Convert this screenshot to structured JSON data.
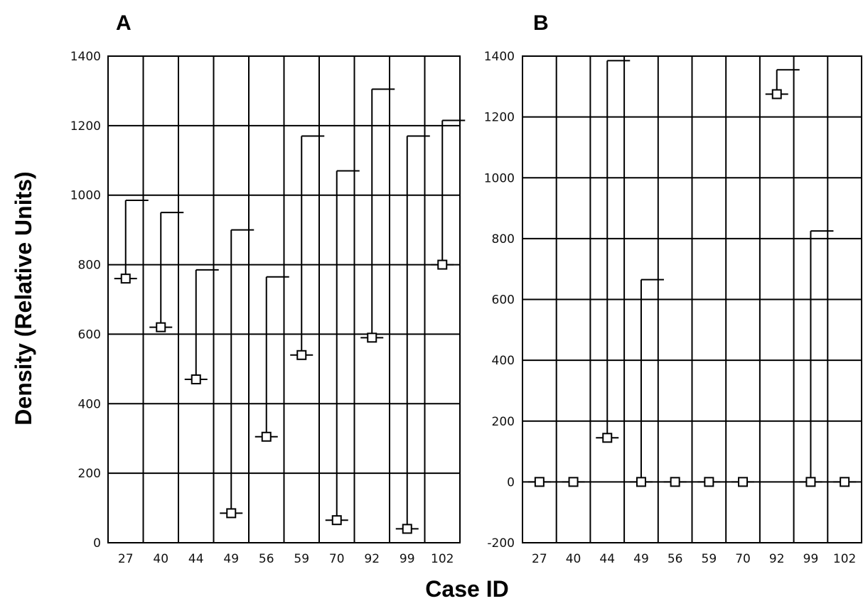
{
  "figure": {
    "ylabel": "Density (Relative Units)",
    "xlabel": "Case ID"
  },
  "chart_data": [
    {
      "type": "scatter",
      "panel_label": "A",
      "categories": [
        "27",
        "40",
        "44",
        "49",
        "56",
        "59",
        "70",
        "92",
        "99",
        "102"
      ],
      "values": [
        760,
        620,
        470,
        85,
        305,
        540,
        65,
        590,
        40,
        800
      ],
      "upper": [
        985,
        950,
        785,
        900,
        765,
        1170,
        1070,
        1305,
        1170,
        1215
      ],
      "ylim": [
        0,
        1400
      ],
      "yticks": [
        0,
        200,
        400,
        600,
        800,
        1000,
        1200,
        1400
      ],
      "grid": true
    },
    {
      "type": "scatter",
      "panel_label": "B",
      "categories": [
        "27",
        "40",
        "44",
        "49",
        "56",
        "59",
        "70",
        "92",
        "99",
        "102"
      ],
      "values": [
        0,
        0,
        145,
        0,
        0,
        0,
        0,
        1275,
        0,
        0
      ],
      "upper": [
        0,
        0,
        1385,
        665,
        0,
        0,
        0,
        1355,
        825,
        0
      ],
      "ylim": [
        -200,
        1400
      ],
      "yticks": [
        -200,
        0,
        200,
        400,
        600,
        800,
        1000,
        1200,
        1400
      ],
      "grid": true
    }
  ]
}
